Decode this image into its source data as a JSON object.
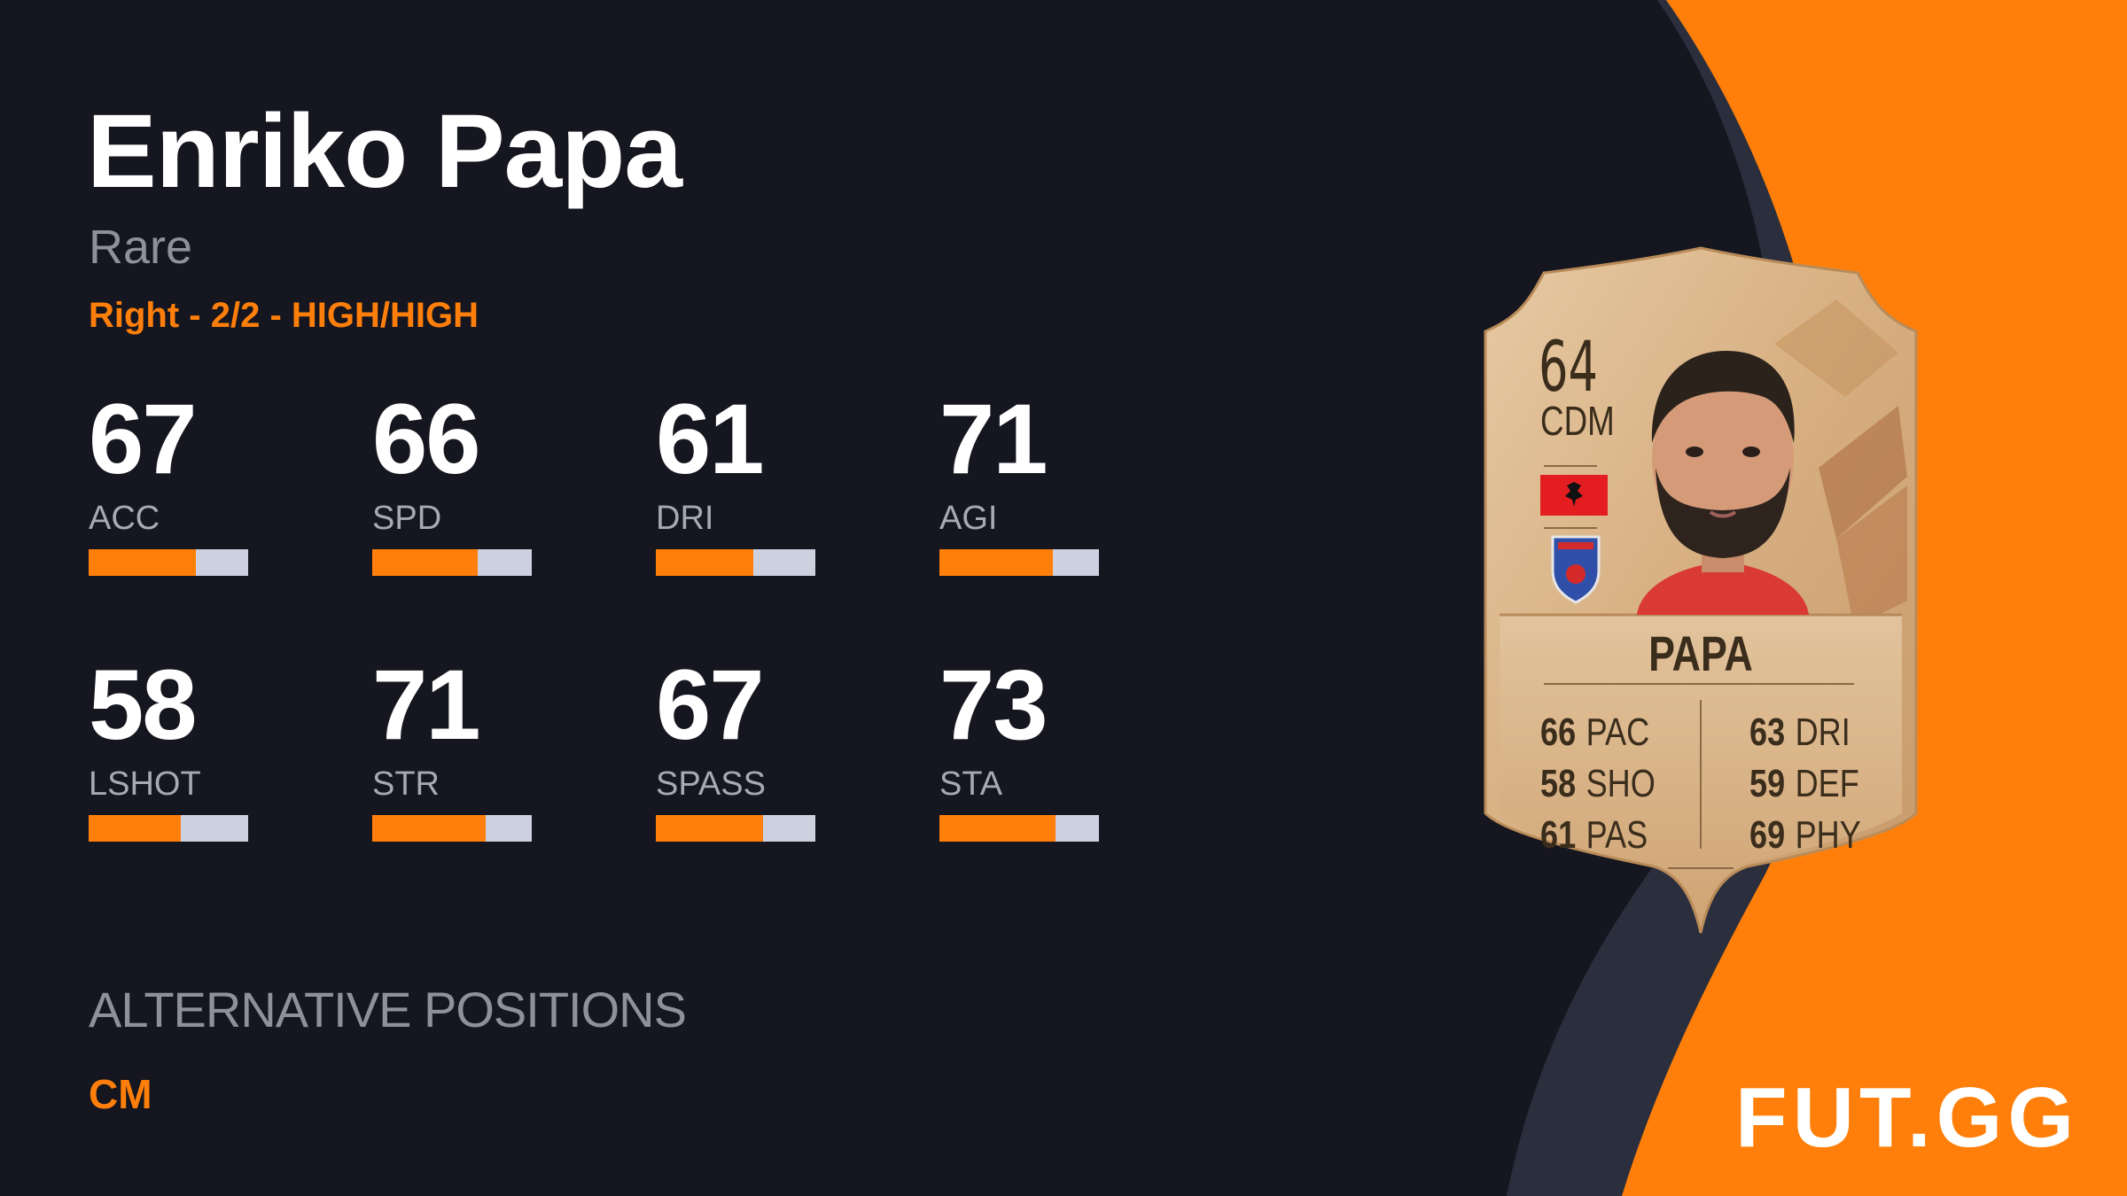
{
  "player": {
    "name": "Enriko Papa",
    "rarity": "Rare",
    "foot_info": "Right - 2/2 - HIGH/HIGH"
  },
  "stats": [
    {
      "value": "67",
      "label": "ACC",
      "fill": 0.67
    },
    {
      "value": "66",
      "label": "SPD",
      "fill": 0.66
    },
    {
      "value": "61",
      "label": "DRI",
      "fill": 0.61
    },
    {
      "value": "71",
      "label": "AGI",
      "fill": 0.71
    },
    {
      "value": "58",
      "label": "LSHOT",
      "fill": 0.58
    },
    {
      "value": "71",
      "label": "STR",
      "fill": 0.71
    },
    {
      "value": "67",
      "label": "SPASS",
      "fill": 0.67
    },
    {
      "value": "73",
      "label": "STA",
      "fill": 0.73
    }
  ],
  "alternative_positions": {
    "title": "ALTERNATIVE POSITIONS",
    "positions": "CM"
  },
  "card": {
    "rating": "64",
    "position": "CDM",
    "name": "PAPA",
    "left_stats": [
      {
        "value": "66",
        "label": "PAC"
      },
      {
        "value": "58",
        "label": "SHO"
      },
      {
        "value": "61",
        "label": "PAS"
      }
    ],
    "right_stats": [
      {
        "value": "63",
        "label": "DRI"
      },
      {
        "value": "59",
        "label": "DEF"
      },
      {
        "value": "69",
        "label": "PHY"
      }
    ],
    "flag_icon": "albania-flag-icon",
    "club_icon": "club-crest-icon"
  },
  "logo": "FUT.GG",
  "colors": {
    "background": "#15161f",
    "accent": "#ff7f0a",
    "bar_empty": "#cdd0df",
    "card_gold": "#d9b48a"
  }
}
